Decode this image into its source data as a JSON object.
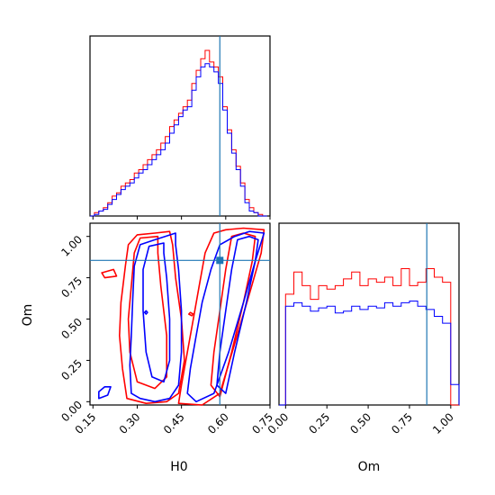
{
  "chart_data": {
    "type": "corner",
    "colors": {
      "series_a": "#ff0000",
      "series_b": "#0000ff",
      "truth": "#1f77b4"
    },
    "series": [
      {
        "name": "",
        "color": "#ff0000"
      },
      {
        "name": "",
        "color": "#0000ff"
      }
    ],
    "truths": {
      "H0": 0.58,
      "Om": 0.855
    },
    "panels": [
      {
        "id": "hist_H0",
        "type": "histogram",
        "x_param": "H0",
        "xlim": [
          0.14,
          0.75
        ],
        "bins": [
          0.14,
          0.155,
          0.17,
          0.185,
          0.2,
          0.215,
          0.23,
          0.245,
          0.26,
          0.275,
          0.29,
          0.305,
          0.32,
          0.335,
          0.35,
          0.365,
          0.38,
          0.395,
          0.41,
          0.425,
          0.44,
          0.455,
          0.47,
          0.485,
          0.5,
          0.515,
          0.53,
          0.545,
          0.56,
          0.575,
          0.59,
          0.605,
          0.62,
          0.635,
          0.65,
          0.665,
          0.68,
          0.695,
          0.71,
          0.725,
          0.74
        ],
        "counts_red": [
          0,
          2,
          3,
          5,
          8,
          12,
          14,
          18,
          20,
          22,
          26,
          28,
          31,
          34,
          37,
          40,
          44,
          48,
          54,
          58,
          62,
          66,
          70,
          80,
          88,
          95,
          100,
          93,
          90,
          84,
          66,
          52,
          40,
          30,
          20,
          10,
          5,
          2,
          1,
          0
        ],
        "counts_blue": [
          0,
          1,
          3,
          4,
          7,
          10,
          13,
          16,
          18,
          20,
          23,
          26,
          28,
          31,
          34,
          37,
          40,
          44,
          50,
          55,
          60,
          64,
          66,
          76,
          84,
          90,
          92,
          90,
          87,
          80,
          64,
          50,
          38,
          28,
          18,
          8,
          3,
          2,
          0,
          0
        ],
        "show_ticks": false
      },
      {
        "id": "contour_H0_Om",
        "type": "contour",
        "x_param": "H0",
        "y_param": "Om",
        "xlim": [
          0.14,
          0.75
        ],
        "ylim": [
          -0.02,
          1.08
        ],
        "xticks": [
          "0.15",
          "0.30",
          "0.45",
          "0.60",
          "0.75"
        ],
        "yticks": [
          "0.00",
          "0.25",
          "0.50",
          "0.75",
          "1.00"
        ],
        "xticks_values": [
          0.15,
          0.3,
          0.45,
          0.6,
          0.75
        ],
        "yticks_values": [
          0.0,
          0.25,
          0.5,
          0.75,
          1.0
        ],
        "xlabel": "H0",
        "ylabel": "Om",
        "contours": [
          {
            "series": "red",
            "level": "outer",
            "points": [
              [
                0.41,
                1.03
              ],
              [
                0.36,
                1.02
              ],
              [
                0.3,
                1.01
              ],
              [
                0.27,
                0.95
              ],
              [
                0.26,
                0.82
              ],
              [
                0.245,
                0.6
              ],
              [
                0.24,
                0.4
              ],
              [
                0.25,
                0.2
              ],
              [
                0.265,
                0.02
              ],
              [
                0.33,
                -0.01
              ],
              [
                0.4,
                0.0
              ],
              [
                0.44,
                0.05
              ],
              [
                0.46,
                0.25
              ],
              [
                0.45,
                0.5
              ],
              [
                0.43,
                0.75
              ],
              [
                0.42,
                0.95
              ]
            ]
          },
          {
            "series": "red",
            "level": "inner",
            "points": [
              [
                0.37,
                1.0
              ],
              [
                0.31,
                0.99
              ],
              [
                0.29,
                0.9
              ],
              [
                0.28,
                0.7
              ],
              [
                0.27,
                0.5
              ],
              [
                0.275,
                0.3
              ],
              [
                0.3,
                0.12
              ],
              [
                0.36,
                0.08
              ],
              [
                0.4,
                0.15
              ],
              [
                0.4,
                0.4
              ],
              [
                0.38,
                0.7
              ],
              [
                0.37,
                0.9
              ]
            ]
          },
          {
            "series": "red",
            "level": "outer",
            "points": [
              [
                0.56,
                1.02
              ],
              [
                0.53,
                0.9
              ],
              [
                0.51,
                0.7
              ],
              [
                0.49,
                0.5
              ],
              [
                0.47,
                0.3
              ],
              [
                0.45,
                0.1
              ],
              [
                0.44,
                -0.01
              ],
              [
                0.52,
                -0.02
              ],
              [
                0.58,
                0.05
              ],
              [
                0.63,
                0.35
              ],
              [
                0.68,
                0.65
              ],
              [
                0.72,
                0.9
              ],
              [
                0.73,
                1.04
              ],
              [
                0.66,
                1.05
              ],
              [
                0.6,
                1.04
              ]
            ]
          },
          {
            "series": "red",
            "level": "inner",
            "points": [
              [
                0.62,
                1.0
              ],
              [
                0.6,
                0.8
              ],
              [
                0.58,
                0.55
              ],
              [
                0.56,
                0.3
              ],
              [
                0.55,
                0.1
              ],
              [
                0.58,
                0.03
              ],
              [
                0.62,
                0.3
              ],
              [
                0.66,
                0.6
              ],
              [
                0.69,
                0.85
              ],
              [
                0.7,
                1.0
              ],
              [
                0.66,
                1.02
              ]
            ]
          },
          {
            "series": "blue",
            "level": "outer",
            "points": [
              [
                0.43,
                1.02
              ],
              [
                0.36,
                0.98
              ],
              [
                0.31,
                0.95
              ],
              [
                0.29,
                0.82
              ],
              [
                0.285,
                0.62
              ],
              [
                0.28,
                0.4
              ],
              [
                0.275,
                0.22
              ],
              [
                0.28,
                0.05
              ],
              [
                0.31,
                0.02
              ],
              [
                0.36,
                0.0
              ],
              [
                0.41,
                0.02
              ],
              [
                0.44,
                0.1
              ],
              [
                0.45,
                0.3
              ],
              [
                0.45,
                0.55
              ],
              [
                0.44,
                0.8
              ],
              [
                0.43,
                0.95
              ]
            ]
          },
          {
            "series": "blue",
            "level": "inner",
            "points": [
              [
                0.39,
                0.96
              ],
              [
                0.34,
                0.94
              ],
              [
                0.32,
                0.8
              ],
              [
                0.32,
                0.55
              ],
              [
                0.33,
                0.3
              ],
              [
                0.35,
                0.15
              ],
              [
                0.39,
                0.12
              ],
              [
                0.41,
                0.25
              ],
              [
                0.41,
                0.5
              ],
              [
                0.4,
                0.75
              ],
              [
                0.39,
                0.9
              ]
            ]
          },
          {
            "series": "blue",
            "level": "outer",
            "points": [
              [
                0.58,
                0.95
              ],
              [
                0.55,
                0.8
              ],
              [
                0.52,
                0.6
              ],
              [
                0.5,
                0.4
              ],
              [
                0.48,
                0.2
              ],
              [
                0.47,
                0.05
              ],
              [
                0.5,
                0.0
              ],
              [
                0.56,
                0.05
              ],
              [
                0.61,
                0.3
              ],
              [
                0.66,
                0.6
              ],
              [
                0.7,
                0.85
              ],
              [
                0.73,
                1.02
              ],
              [
                0.68,
                1.03
              ],
              [
                0.63,
                1.0
              ]
            ]
          },
          {
            "series": "blue",
            "level": "inner",
            "points": [
              [
                0.64,
                0.98
              ],
              [
                0.62,
                0.8
              ],
              [
                0.6,
                0.55
              ],
              [
                0.58,
                0.3
              ],
              [
                0.57,
                0.1
              ],
              [
                0.6,
                0.05
              ],
              [
                0.63,
                0.3
              ],
              [
                0.67,
                0.6
              ],
              [
                0.7,
                0.85
              ],
              [
                0.71,
                0.98
              ],
              [
                0.68,
                1.0
              ]
            ]
          },
          {
            "series": "blue",
            "level": "outer",
            "points": [
              [
                0.17,
                0.02
              ],
              [
                0.2,
                0.04
              ],
              [
                0.21,
                0.09
              ],
              [
                0.19,
                0.09
              ],
              [
                0.17,
                0.06
              ]
            ]
          },
          {
            "series": "blue",
            "level": "outer",
            "points": [
              [
                0.58,
                0.87
              ],
              [
                0.59,
                0.86
              ],
              [
                0.585,
                0.84
              ],
              [
                0.575,
                0.85
              ]
            ]
          },
          {
            "series": "blue",
            "level": "outer",
            "points": [
              [
                0.33,
                0.55
              ],
              [
                0.335,
                0.54
              ],
              [
                0.33,
                0.53
              ],
              [
                0.325,
                0.54
              ]
            ]
          },
          {
            "series": "red",
            "level": "outer",
            "points": [
              [
                0.18,
                0.78
              ],
              [
                0.22,
                0.8
              ],
              [
                0.23,
                0.76
              ],
              [
                0.19,
                0.75
              ]
            ]
          },
          {
            "series": "red",
            "level": "outer",
            "points": [
              [
                0.48,
                0.54
              ],
              [
                0.49,
                0.53
              ],
              [
                0.485,
                0.52
              ],
              [
                0.475,
                0.53
              ]
            ]
          }
        ],
        "show_xticks": true,
        "show_yticks": true
      },
      {
        "id": "hist_Om",
        "type": "histogram",
        "x_param": "Om",
        "xlim": [
          -0.04,
          1.05
        ],
        "bins": [
          -0.04,
          0.0,
          0.05,
          0.1,
          0.15,
          0.2,
          0.25,
          0.3,
          0.35,
          0.4,
          0.45,
          0.5,
          0.55,
          0.6,
          0.65,
          0.7,
          0.75,
          0.8,
          0.85,
          0.9,
          0.95,
          1.0,
          1.05
        ],
        "counts_red": [
          0,
          65,
          78,
          70,
          62,
          70,
          68,
          70,
          74,
          78,
          70,
          74,
          72,
          75,
          70,
          80,
          70,
          72,
          80,
          75,
          72,
          0
        ],
        "counts_blue": [
          0,
          58,
          60,
          58,
          55,
          57,
          58,
          54,
          55,
          58,
          56,
          58,
          57,
          60,
          58,
          60,
          61,
          58,
          56,
          52,
          48,
          12
        ],
        "xticks": [
          "0.00",
          "0.25",
          "0.50",
          "0.75",
          "1.00"
        ],
        "xticks_values": [
          0.0,
          0.25,
          0.5,
          0.75,
          1.0
        ],
        "xlabel": "Om",
        "show_yticks": false
      }
    ]
  }
}
